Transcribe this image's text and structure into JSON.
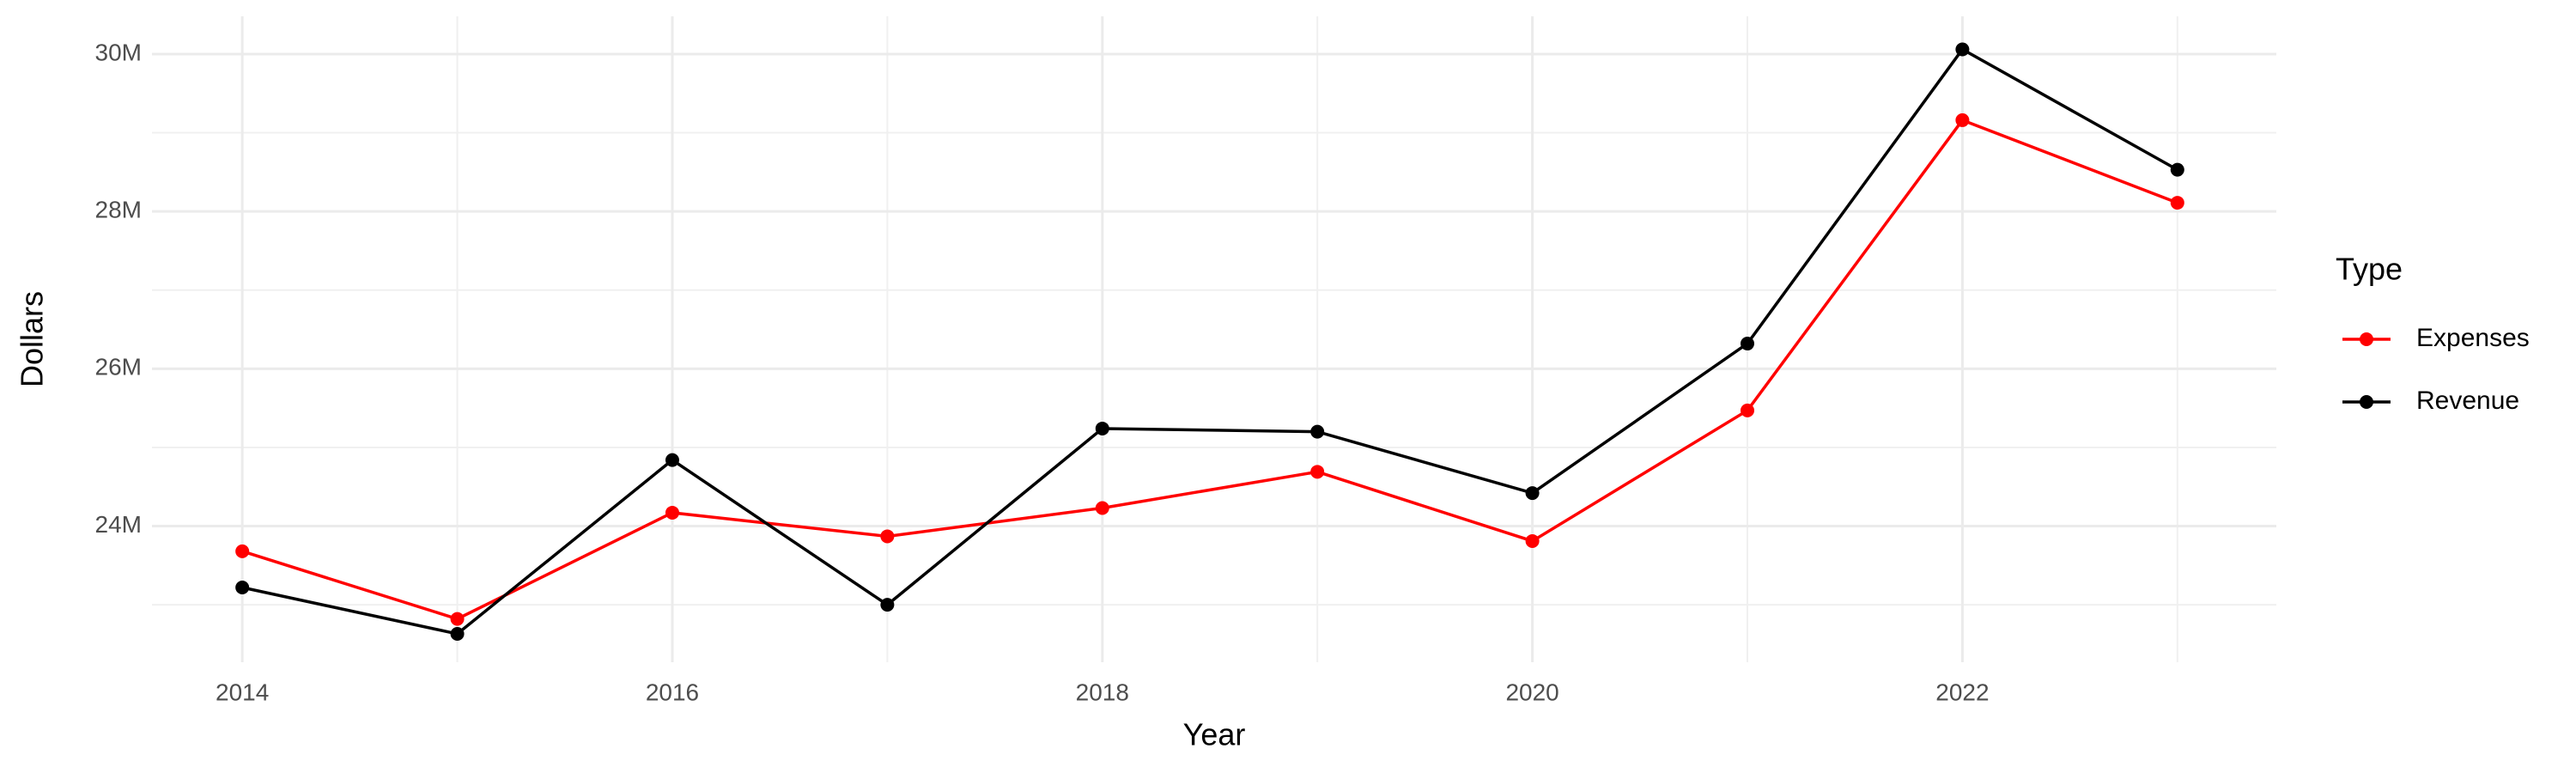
{
  "chart_data": {
    "type": "line",
    "x_label": "Year",
    "y_label": "Dollars",
    "legend_title": "Type",
    "x": [
      2014,
      2015,
      2016,
      2017,
      2018,
      2019,
      2020,
      2021,
      2022,
      2023
    ],
    "series": [
      {
        "name": "Expenses",
        "color": "#ff0000",
        "values": [
          23680000,
          22820000,
          24170000,
          23870000,
          24230000,
          24690000,
          23810000,
          25470000,
          29160000,
          28110000
        ]
      },
      {
        "name": "Revenue",
        "color": "#000000",
        "values": [
          23220000,
          22630000,
          24840000,
          23000000,
          25240000,
          25200000,
          24420000,
          26320000,
          30060000,
          28530000
        ]
      }
    ],
    "xlim": [
      2013.58,
      2023.46
    ],
    "xticks": [
      2014,
      2016,
      2018,
      2020,
      2022
    ],
    "ylim": [
      22270000,
      30480000
    ],
    "yticks": [
      {
        "value": 24000000,
        "label": "24M"
      },
      {
        "value": 26000000,
        "label": "26M"
      },
      {
        "value": 28000000,
        "label": "28M"
      },
      {
        "value": 30000000,
        "label": "30M"
      }
    ],
    "grid": true,
    "legend": "right"
  }
}
